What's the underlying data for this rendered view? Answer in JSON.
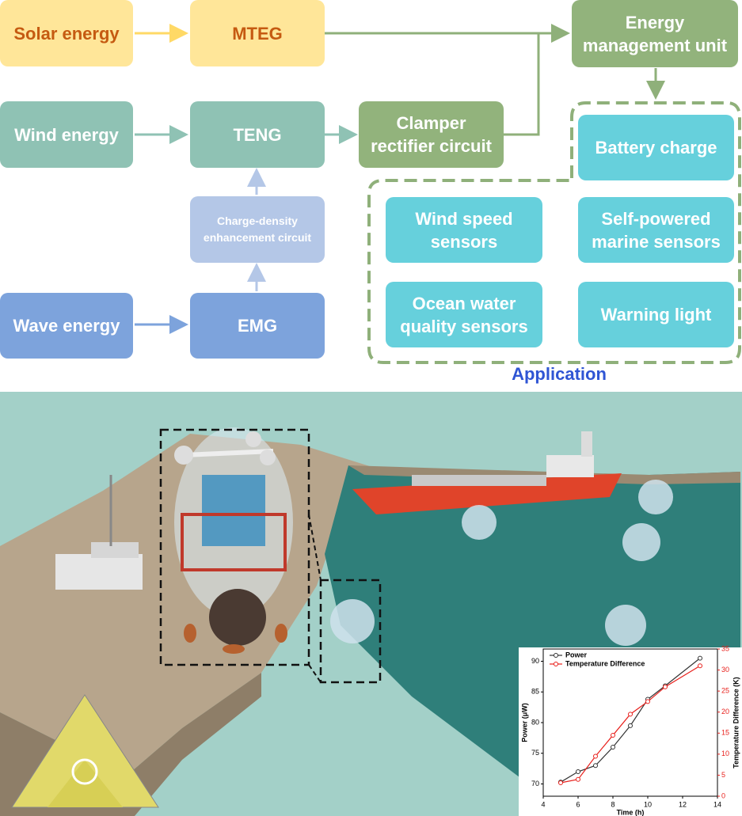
{
  "flowchart": {
    "nodes": [
      {
        "lines": [
          "Solar energy"
        ]
      },
      {
        "lines": [
          "MTEG"
        ]
      },
      {
        "lines": [
          "Energy",
          "management unit"
        ]
      },
      {
        "lines": [
          "Wind energy"
        ]
      },
      {
        "lines": [
          "TENG"
        ]
      },
      {
        "lines": [
          "Clamper",
          "rectifier circuit"
        ]
      },
      {
        "lines": [
          "Charge-density",
          "enhancement circuit"
        ]
      },
      {
        "lines": [
          "Wave energy"
        ]
      },
      {
        "lines": [
          "EMG"
        ]
      },
      {
        "lines": [
          "Battery charge"
        ]
      },
      {
        "lines": [
          "Wind speed",
          "sensors"
        ]
      },
      {
        "lines": [
          "Self-powered",
          "marine sensors"
        ]
      },
      {
        "lines": [
          "Ocean water",
          "quality sensors"
        ]
      },
      {
        "lines": [
          "Warning light"
        ]
      }
    ],
    "application_label": "Application"
  },
  "inset_chart": {
    "type": "line",
    "x": [
      5,
      6,
      7,
      8,
      9,
      10,
      11,
      13
    ],
    "series": [
      {
        "name": "Power",
        "color": "#333333",
        "values": [
          70.3,
          72,
          73,
          76,
          79.5,
          83.8,
          86,
          90.5
        ]
      },
      {
        "name": "Temperature Difference",
        "color": "#e8201c",
        "axis": "y2",
        "values": [
          3.2,
          4,
          9.5,
          14.5,
          19.5,
          22.5,
          26,
          31
        ]
      }
    ],
    "xlim": [
      4,
      14
    ],
    "xticks": [
      4,
      6,
      8,
      10,
      12,
      14
    ],
    "ylim": [
      68,
      92
    ],
    "yticks": [
      70,
      75,
      80,
      85,
      90
    ],
    "y2lim": [
      0,
      35
    ],
    "y2ticks": [
      0,
      5,
      10,
      15,
      20,
      25,
      30,
      35
    ],
    "xlabel": "Time (h)",
    "ylabel": "Power (μW)",
    "y2label": "Temperature Difference (K)"
  }
}
